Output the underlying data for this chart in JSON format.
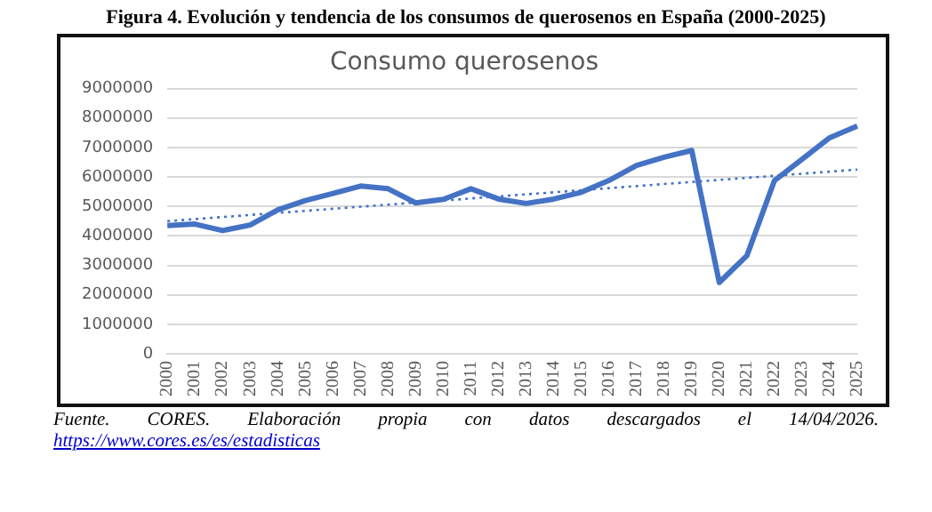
{
  "chart_data": {
    "type": "line",
    "title": "Figura 4. Evolución y tendencia de los consumos de querosenos en España (2000-2025)",
    "subtitle": "Consumo querosenos",
    "categories": [
      "2000",
      "2001",
      "2002",
      "2003",
      "2004",
      "2005",
      "2006",
      "2007",
      "2008",
      "2009",
      "2010",
      "2011",
      "2012",
      "2013",
      "2014",
      "2015",
      "2016",
      "2017",
      "2018",
      "2019",
      "2020",
      "2021",
      "2022",
      "2023",
      "2024",
      "2025"
    ],
    "series": [
      {
        "color": "#4472c4",
        "values": [
          4350000,
          4400000,
          4180000,
          4370000,
          4880000,
          5200000,
          5440000,
          5690000,
          5600000,
          5120000,
          5240000,
          5600000,
          5250000,
          5100000,
          5250000,
          5480000,
          5880000,
          6390000,
          6670000,
          6900000,
          2420000,
          3330000,
          5880000,
          6600000,
          7330000,
          7730000
        ]
      },
      {
        "type": "line",
        "color": "#4472c4",
        "line_style": "dotted",
        "values": [
          4500000,
          4570000,
          4640000,
          4710000,
          4780000,
          4850000,
          4920000,
          4990000,
          5060000,
          5130000,
          5200000,
          5270000,
          5340000,
          5410000,
          5480000,
          5550000,
          5620000,
          5690000,
          5760000,
          5830000,
          5900000,
          5970000,
          6040000,
          6110000,
          6180000,
          6250000
        ]
      }
    ],
    "ylim": [
      0,
      9000000
    ],
    "yticks": [
      0,
      1000000,
      2000000,
      3000000,
      4000000,
      5000000,
      6000000,
      7000000,
      8000000,
      9000000
    ],
    "grid": "y",
    "legend": false,
    "marker": "none",
    "line_style": "solid",
    "annotations": [
      "Fuente. CORES. Elaboración propia con datos descargados el 14/04/2026.",
      "https://www.cores.es/es/estadisticas"
    ]
  }
}
